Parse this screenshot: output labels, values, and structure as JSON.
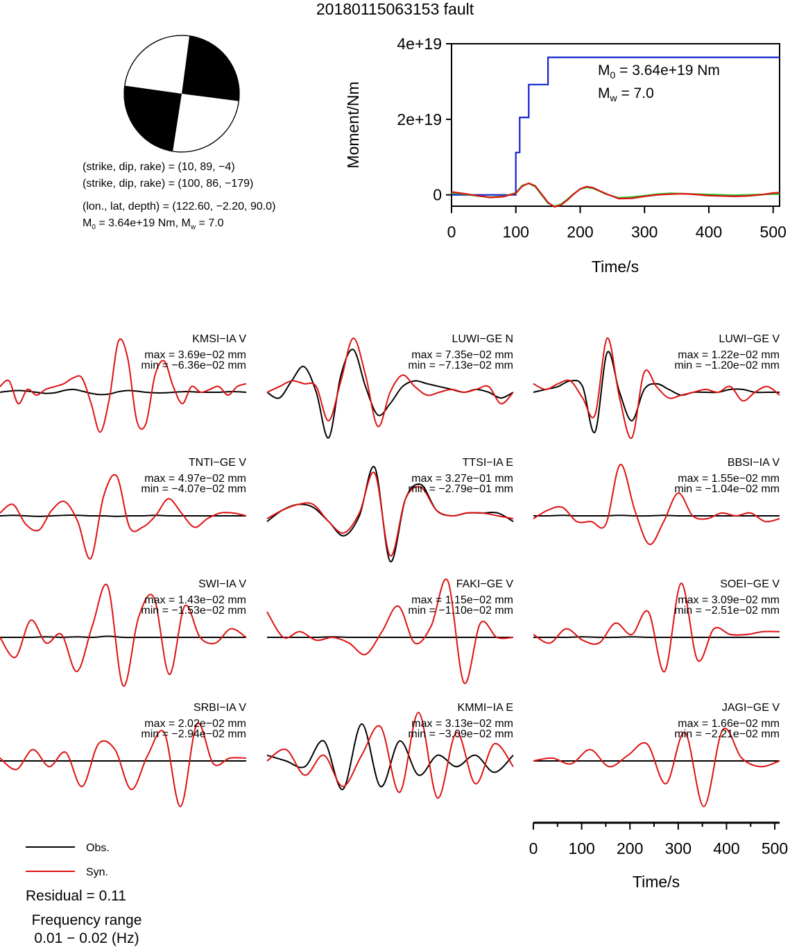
{
  "page": {
    "title": "20180115063153 fault"
  },
  "mechanism": {
    "plane1": "(strike, dip, rake) = (10, 89, −4)",
    "plane2": "(strike, dip, rake) = (100, 86, −179)",
    "location": "(lon., lat, depth) = (122.60, −2.20, 90.0)",
    "moment_prefix": "M",
    "moment_sub": "0",
    "moment_rest": " = 3.64e+19 Nm, M",
    "moment_sub2": "w",
    "moment_tail": " = 7.0"
  },
  "moment_panel": {
    "m0_label_main": "M",
    "m0_label_sub": "0",
    "m0_label_value": " = 3.64e+19 Nm",
    "mw_label_main": "M",
    "mw_label_sub": "w",
    "mw_label_value": " = 7.0"
  },
  "legend": {
    "obs": "Obs.",
    "syn": "Syn.",
    "residual": "Residual = 0.11",
    "freq_title": "Frequency range",
    "freq_value": "0.01 − 0.02 (Hz)"
  },
  "colors": {
    "observed": "#000000",
    "synthetic": "#dd1111",
    "moment": "#1020d0",
    "moment_rate_green": "#22bb22",
    "moment_rate_red": "#dd1111"
  },
  "chart_data": [
    {
      "type": "line",
      "ylabel": "Moment/Nm",
      "xlabel": "Time/s",
      "xlim": [
        0,
        510
      ],
      "ylim": [
        -3e+18,
        4e+19
      ],
      "xticks": [
        "0",
        "100",
        "200",
        "300",
        "400",
        "500"
      ],
      "xtick_values": [
        0,
        100,
        200,
        300,
        400,
        500
      ],
      "yticks": [
        "0",
        "2e+19",
        "4e+19"
      ],
      "ytick_values": [
        0,
        2e+19,
        4e+19
      ],
      "series": [
        {
          "color": "#1020d0",
          "x": [
            0,
            100,
            100,
            106,
            106,
            120,
            120,
            130,
            130,
            150,
            150,
            510
          ],
          "y": [
            0,
            0,
            1.12e+19,
            1.12e+19,
            2.05e+19,
            2.05e+19,
            2.92e+19,
            2.92e+19,
            2.92e+19,
            2.92e+19,
            3.64e+19,
            3.64e+19
          ]
        },
        {
          "color": "#22bb22",
          "x": [
            0,
            20,
            40,
            60,
            80,
            100,
            110,
            120,
            130,
            140,
            150,
            160,
            170,
            180,
            190,
            200,
            210,
            220,
            230,
            240,
            260,
            280,
            300,
            320,
            340,
            360,
            380,
            400,
            420,
            440,
            460,
            480,
            500,
            510
          ],
          "y": [
            5e+17,
            2e+17,
            -3e+17,
            -6e+17,
            -4e+17,
            5e+17,
            2.5e+18,
            3e+18,
            2.2e+18,
            0,
            -2.2e+18,
            -3e+18,
            -2.5e+18,
            -1.2e+18,
            3e+17,
            1.5e+18,
            2e+18,
            1.7e+18,
            1e+18,
            2e+17,
            -8e+17,
            -6e+17,
            -2e+17,
            2e+17,
            4e+17,
            3e+17,
            2e+17,
            1e+17,
            0,
            -1e+17,
            0,
            1e+17,
            2e+17,
            2e+17
          ]
        },
        {
          "color": "#dd1111",
          "x": [
            0,
            20,
            40,
            60,
            80,
            100,
            110,
            120,
            130,
            140,
            150,
            160,
            170,
            180,
            190,
            200,
            210,
            220,
            230,
            240,
            260,
            280,
            300,
            320,
            340,
            360,
            380,
            400,
            420,
            440,
            460,
            480,
            500,
            510
          ],
          "y": [
            8e+17,
            3e+17,
            -2e+17,
            -7e+17,
            -5e+17,
            4e+17,
            2.3e+18,
            3.1e+18,
            2.4e+18,
            2e+17,
            -2e+18,
            -3.2e+18,
            -2.7e+18,
            -1.4e+18,
            2e+17,
            1.6e+18,
            2.2e+18,
            1.9e+18,
            1.1e+18,
            3e+17,
            -1e+18,
            -9e+17,
            -4e+17,
            0,
            2e+17,
            3e+17,
            1e+17,
            -2e+17,
            -3e+17,
            -4e+17,
            -3e+17,
            0,
            5e+17,
            6e+17
          ]
        }
      ]
    },
    {
      "type": "line",
      "panels": [
        {
          "station": "KMSI−IA V",
          "max": "max = 3.69e−02 mm",
          "min": "min = −6.36e−02 mm",
          "obs": [
            0,
            0.02,
            0.03,
            0.02,
            0.0,
            -0.02,
            -0.01,
            0.03,
            0.05,
            0.02,
            -0.02,
            -0.04,
            -0.03,
            0.01,
            0.03,
            0.02,
            0.0,
            -0.01,
            -0.01,
            0.0,
            0.01,
            0.01,
            0.0,
            0.0,
            0.0,
            0.01,
            0.01,
            0.0
          ],
          "syn": [
            0.1,
            0.2,
            -0.2,
            0.05,
            -0.05,
            0.05,
            0.1,
            0.15,
            0.25,
            0.25,
            -0.2,
            -0.7,
            -0.1,
            0.9,
            0.6,
            -0.5,
            -0.55,
            0.3,
            0.55,
            0.1,
            -0.2,
            0.1,
            0.0,
            0.05,
            0.1,
            -0.05,
            0.1,
            0.15
          ]
        },
        {
          "station": "LUWI−GE N",
          "max": "max = 7.35e−02 mm",
          "min": "min = −7.13e−02 mm",
          "obs": [
            0.0,
            -0.1,
            0.2,
            0.45,
            0.0,
            -0.8,
            0.3,
            0.75,
            0.1,
            -0.4,
            -0.2,
            0.1,
            0.2,
            0.15,
            0.1,
            0.05,
            0.0,
            0.05,
            0.0,
            -0.1,
            0.0
          ],
          "syn": [
            0.0,
            0.1,
            0.2,
            0.15,
            0.1,
            -0.5,
            0.2,
            0.95,
            0.3,
            -0.6,
            0.0,
            0.3,
            0.1,
            -0.05,
            0.0,
            0.05,
            0.0,
            0.05,
            0.1,
            -0.2,
            0.0
          ]
        },
        {
          "station": "LUWI−GE V",
          "max": "max = 1.22e−02 mm",
          "min": "min = −1.20e−02 mm",
          "obs": [
            0.0,
            0.05,
            0.1,
            0.2,
            0.1,
            -0.7,
            0.7,
            0.0,
            -0.5,
            0.05,
            0.15,
            0.05,
            -0.05,
            0.0,
            0.0,
            0.0,
            0.05,
            0.05,
            0.0,
            0.0,
            0.0
          ],
          "syn": [
            0.15,
            0.05,
            0.15,
            0.2,
            -0.1,
            -0.4,
            0.95,
            -0.1,
            -0.8,
            0.35,
            0.1,
            -0.1,
            -0.05,
            0.0,
            0.05,
            0.0,
            0.1,
            -0.15,
            0.0,
            0.1,
            -0.05
          ]
        },
        {
          "station": "TNTI−GE V",
          "max": "max = 4.97e−02 mm",
          "min": "min = −4.07e−02 mm",
          "obs": [
            0,
            0.01,
            0.0,
            -0.01,
            0.0,
            0.01,
            0.01,
            0.0,
            0.0,
            -0.01,
            0.0,
            0.0,
            0.01,
            0.0,
            0.0,
            0.0,
            0.0,
            0.0,
            0.0,
            0.0
          ],
          "syn": [
            0.05,
            0.2,
            -0.15,
            -0.25,
            0.1,
            0.25,
            -0.1,
            -0.75,
            0.35,
            0.7,
            -0.2,
            -0.2,
            0.0,
            0.3,
            0.05,
            -0.2,
            -0.05,
            0.05,
            0.05,
            0.0
          ]
        },
        {
          "station": "TTSI−IA E",
          "max": "max = 3.27e−01 mm",
          "min": "min = −2.79e−01 mm",
          "obs": [
            -0.1,
            0.1,
            0.2,
            0.15,
            -0.1,
            -0.35,
            0.0,
            0.85,
            -0.8,
            0.3,
            0.55,
            0.1,
            0.0,
            0.05,
            0.05,
            0.05,
            -0.1
          ],
          "syn": [
            -0.05,
            0.1,
            0.2,
            0.2,
            -0.1,
            -0.3,
            0.05,
            0.75,
            -0.7,
            0.3,
            0.5,
            0.1,
            0.0,
            0.05,
            0.05,
            0.0,
            -0.05
          ]
        },
        {
          "station": "BBSI−IA V",
          "max": "max = 1.55e−02 mm",
          "min": "min = −1.04e−02 mm",
          "obs": [
            0,
            0.0,
            0.01,
            0.0,
            0.0,
            0.0,
            0.01,
            0.0,
            0.0,
            0.01,
            0.0,
            0.0,
            0.0,
            0.0,
            0.0,
            0.0,
            0.0,
            0.0
          ],
          "syn": [
            -0.05,
            0.1,
            0.15,
            -0.1,
            -0.1,
            -0.15,
            0.9,
            0.1,
            -0.5,
            -0.1,
            0.4,
            0.0,
            -0.05,
            0.05,
            0.0,
            0.05,
            -0.1,
            -0.05
          ]
        },
        {
          "station": "SWI−IA V",
          "max": "max = 1.43e−02 mm",
          "min": "min = −1.53e−02 mm",
          "obs": [
            0,
            0.0,
            0.0,
            0.01,
            0.0,
            0.01,
            0.0,
            0.02,
            0.0,
            0.0,
            0.0,
            0.0,
            0.0,
            0.0,
            0.0,
            0.0,
            0.0
          ],
          "syn": [
            0.0,
            -0.35,
            0.3,
            -0.1,
            0.05,
            -0.6,
            0.2,
            0.9,
            -0.85,
            0.35,
            0.7,
            -0.65,
            0.55,
            0.0,
            -0.1,
            0.15,
            0.0
          ]
        },
        {
          "station": "FAKI−GE V",
          "max": "max = 1.15e−02 mm",
          "min": "min = −1.10e−02 mm",
          "obs": [
            0,
            0.0,
            0.0,
            0.0,
            0.01,
            0.0,
            0.0,
            0.0,
            0.0,
            0.0,
            0.0,
            0.0,
            0.0,
            0.0,
            0.0,
            0.0
          ],
          "syn": [
            0.45,
            0.0,
            0.1,
            -0.05,
            0.0,
            -0.1,
            -0.3,
            0.1,
            0.55,
            -0.1,
            0.2,
            1.0,
            -0.8,
            0.25,
            0.0,
            0.0
          ]
        },
        {
          "station": "SOEI−GE V",
          "max": "max = 3.09e−02 mm",
          "min": "min = −2.51e−02 mm",
          "obs": [
            0,
            0.0,
            0.0,
            0.01,
            0.0,
            0.0,
            0.01,
            0.0,
            0.0,
            0.0,
            0.0,
            0.0,
            0.0,
            0.0,
            0.0,
            0.0
          ],
          "syn": [
            0.05,
            -0.1,
            0.15,
            -0.05,
            -0.1,
            0.25,
            0.05,
            0.45,
            -0.6,
            0.95,
            -0.4,
            0.15,
            0.05,
            0.05,
            0.1,
            0.1
          ]
        },
        {
          "station": "SRBI−IA V",
          "max": "max = 2.02e−02 mm",
          "min": "min = −2.94e−02 mm",
          "obs": [
            0,
            0.0,
            0.0,
            0.0,
            0.0,
            0.0,
            0.0,
            0.0,
            0.0,
            0.0,
            0.0,
            0.0,
            0.0,
            0.0,
            0.0,
            0.0
          ],
          "syn": [
            0.05,
            -0.15,
            0.2,
            -0.1,
            0.15,
            -0.45,
            0.3,
            0.2,
            -0.5,
            0.1,
            0.5,
            -0.8,
            0.65,
            -0.05,
            0.05,
            0.05
          ]
        },
        {
          "station": "KMMI−IA E",
          "max": "max = 3.13e−02 mm",
          "min": "min = −3.09e−02 mm",
          "obs": [
            0.1,
            0.0,
            -0.1,
            0.35,
            -0.5,
            0.65,
            -0.45,
            0.35,
            -0.25,
            0.1,
            -0.1,
            0.1,
            -0.2,
            0.1
          ],
          "syn": [
            0.0,
            0.2,
            -0.25,
            0.1,
            -0.45,
            0.1,
            0.6,
            -0.55,
            0.85,
            -0.65,
            0.5,
            -0.4,
            0.3,
            -0.1
          ]
        },
        {
          "station": "JAGI−GE V",
          "max": "max = 1.66e−02 mm",
          "min": "min = −2.21e−02 mm",
          "obs": [
            0,
            0.0,
            0.0,
            0.0,
            0.0,
            0.0,
            0.0,
            0.0,
            0.0,
            0.0,
            0.0,
            0.0,
            0.0,
            0.0
          ],
          "syn": [
            0.0,
            0.05,
            -0.05,
            0.2,
            -0.1,
            0.1,
            0.3,
            -0.4,
            0.5,
            -0.8,
            0.55,
            0.05,
            -0.1,
            0.0
          ]
        }
      ],
      "time_axis": {
        "xlabel": "Time/s",
        "xlim": [
          0,
          510
        ],
        "xticks": [
          "0",
          "100",
          "200",
          "300",
          "400",
          "500"
        ],
        "xtick_values": [
          0,
          100,
          200,
          300,
          400,
          500
        ]
      }
    }
  ]
}
